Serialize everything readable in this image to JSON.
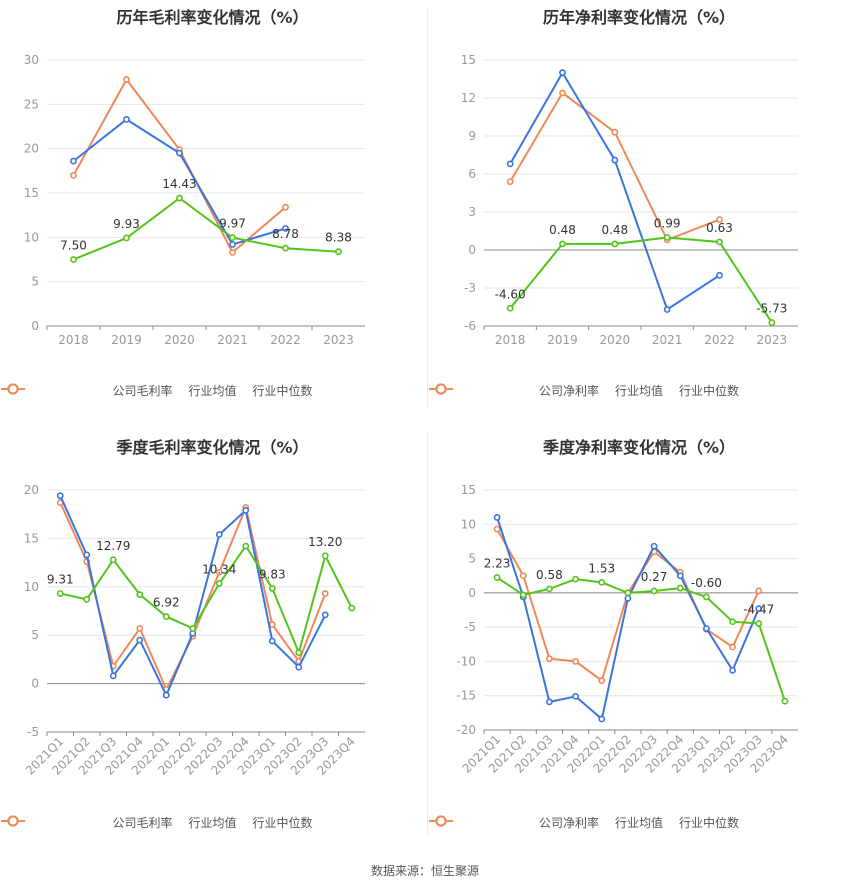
{
  "colors": {
    "company": "#52c41a",
    "avg": "#3a75dd",
    "median": "#f0885a",
    "grid": "#e6e6e6",
    "axis": "#999999",
    "label": "#333333"
  },
  "source": "数据来源：恒生聚源",
  "chart_data": [
    {
      "type": "line",
      "title": "历年毛利率变化情况（%）",
      "categories": [
        "2018",
        "2019",
        "2020",
        "2021",
        "2022",
        "2023"
      ],
      "ylim": [
        0,
        30
      ],
      "yticks": [
        0,
        5,
        10,
        15,
        20,
        25,
        30
      ],
      "legend_position": "bottom",
      "series": [
        {
          "name": "公司毛利率",
          "key": "company",
          "values": [
            7.5,
            9.93,
            14.43,
            9.97,
            8.78,
            8.38
          ],
          "labels": [
            "7.50",
            "9.93",
            "14.43",
            "9.97",
            "8.78",
            "8.38"
          ]
        },
        {
          "name": "行业均值",
          "key": "avg",
          "values": [
            18.6,
            23.3,
            19.5,
            9.2,
            11.0,
            null
          ]
        },
        {
          "name": "行业中位数",
          "key": "median",
          "values": [
            17.0,
            27.8,
            19.9,
            8.3,
            13.4,
            null
          ]
        }
      ]
    },
    {
      "type": "line",
      "title": "历年净利率变化情况（%）",
      "categories": [
        "2018",
        "2019",
        "2020",
        "2021",
        "2022",
        "2023"
      ],
      "ylim": [
        -6,
        15
      ],
      "yticks": [
        -6,
        -3,
        0,
        3,
        6,
        9,
        12,
        15
      ],
      "legend_position": "bottom",
      "series": [
        {
          "name": "公司净利率",
          "key": "company",
          "values": [
            -4.6,
            0.48,
            0.48,
            0.99,
            0.63,
            -5.73
          ],
          "labels": [
            "-4.60",
            "0.48",
            "0.48",
            "0.99",
            "0.63",
            "-5.73"
          ]
        },
        {
          "name": "行业均值",
          "key": "avg",
          "values": [
            6.8,
            14.0,
            7.1,
            -4.7,
            -2.0,
            null
          ]
        },
        {
          "name": "行业中位数",
          "key": "median",
          "values": [
            5.4,
            12.4,
            9.3,
            0.8,
            2.4,
            null
          ]
        }
      ]
    },
    {
      "type": "line",
      "title": "季度毛利率变化情况（%）",
      "categories": [
        "2021Q1",
        "2021Q2",
        "2021Q3",
        "2021Q4",
        "2022Q1",
        "2022Q2",
        "2022Q3",
        "2022Q4",
        "2023Q1",
        "2023Q2",
        "2023Q3",
        "2023Q4"
      ],
      "ylim": [
        -5,
        20
      ],
      "yticks": [
        -5,
        0,
        5,
        10,
        15,
        20
      ],
      "legend_position": "bottom",
      "series": [
        {
          "name": "公司毛利率",
          "key": "company",
          "values": [
            9.31,
            8.7,
            12.79,
            9.2,
            6.92,
            5.7,
            10.34,
            14.2,
            9.83,
            3.2,
            13.2,
            7.8
          ],
          "labels": [
            "9.31",
            "",
            "12.79",
            "",
            "6.92",
            "",
            "10.34",
            "",
            "9.83",
            "",
            "13.20",
            ""
          ]
        },
        {
          "name": "行业均值",
          "key": "avg",
          "values": [
            19.4,
            13.3,
            0.8,
            4.5,
            -1.2,
            5.2,
            15.4,
            17.9,
            4.4,
            1.7,
            7.1,
            null
          ]
        },
        {
          "name": "行业中位数",
          "key": "median",
          "values": [
            18.7,
            12.6,
            1.8,
            5.7,
            -0.6,
            4.9,
            11.5,
            18.2,
            6.1,
            2.3,
            9.3,
            null
          ]
        }
      ]
    },
    {
      "type": "line",
      "title": "季度净利率变化情况（%）",
      "categories": [
        "2021Q1",
        "2021Q2",
        "2021Q3",
        "2021Q4",
        "2022Q1",
        "2022Q2",
        "2022Q3",
        "2022Q4",
        "2023Q1",
        "2023Q2",
        "2023Q3",
        "2023Q4"
      ],
      "ylim": [
        -20,
        15
      ],
      "yticks": [
        -20,
        -15,
        -10,
        -5,
        0,
        5,
        10,
        15
      ],
      "legend_position": "bottom",
      "series": [
        {
          "name": "公司净利率",
          "key": "company",
          "values": [
            2.23,
            -0.3,
            0.58,
            2.0,
            1.53,
            0.0,
            0.27,
            0.7,
            -0.6,
            -4.2,
            -4.47,
            -15.8
          ],
          "labels": [
            "2.23",
            "",
            "0.58",
            "",
            "1.53",
            "",
            "0.27",
            "",
            "-0.60",
            "",
            "-4.47",
            ""
          ]
        },
        {
          "name": "行业均值",
          "key": "avg",
          "values": [
            11.0,
            -0.6,
            -15.9,
            -15.1,
            -18.4,
            -0.8,
            6.8,
            2.5,
            -5.2,
            -11.3,
            -2.3,
            null
          ]
        },
        {
          "name": "行业中位数",
          "key": "median",
          "values": [
            9.3,
            2.5,
            -9.6,
            -10.0,
            -12.8,
            0.0,
            6.0,
            3.0,
            -5.3,
            -7.9,
            0.3,
            null
          ]
        }
      ]
    }
  ]
}
